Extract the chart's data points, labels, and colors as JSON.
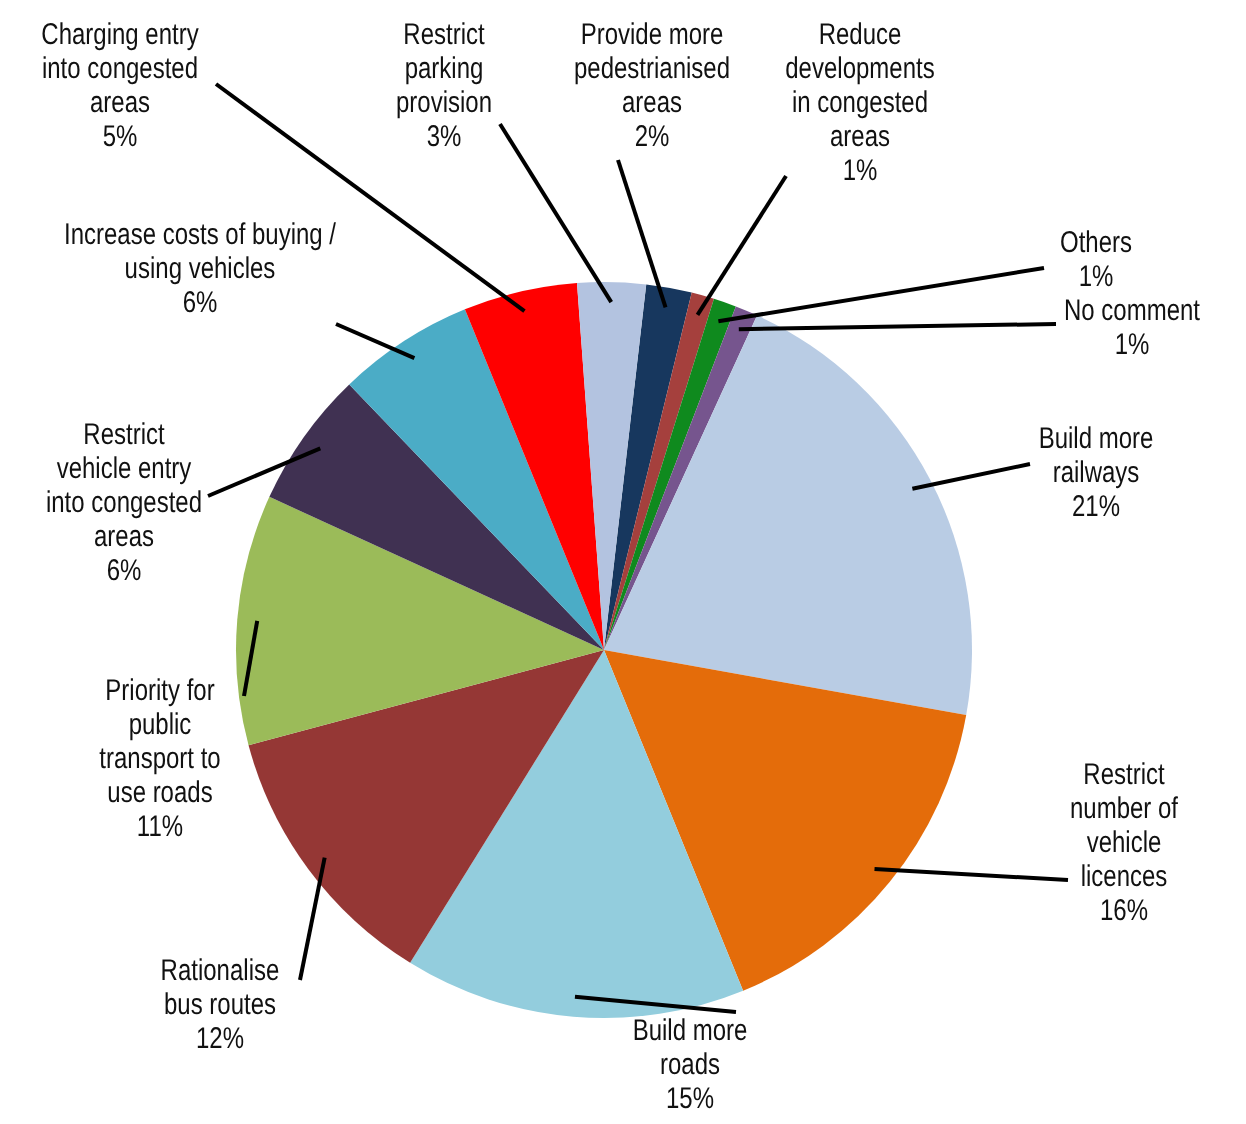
{
  "chart_data": {
    "type": "pie",
    "categories": [
      "Provide more pedestrianised areas",
      "Reduce developments in congested areas",
      "Others",
      "No comment",
      "Build more railways",
      "Restrict number of vehicle licences",
      "Build more roads",
      "Rationalise bus routes",
      "Priority for public transport to use roads",
      "Restrict vehicle entry into congested areas",
      "Increase costs of buying / using vehicles",
      "Charging entry into congested areas",
      "Restrict parking provision"
    ],
    "values": [
      2,
      1,
      1,
      1,
      21,
      16,
      15,
      12,
      11,
      6,
      6,
      5,
      3
    ],
    "colors": [
      "#17375e",
      "#a5403d",
      "#0f8a1e",
      "#76558e",
      "#b9cce4",
      "#e46c0a",
      "#93cddd",
      "#953735",
      "#9bbb59",
      "#403152",
      "#4bacc6",
      "#ff0000",
      "#b3c3e0"
    ],
    "value_labels": [
      "2%",
      "1%",
      "1%",
      "1%",
      "21%",
      "16%",
      "15%",
      "12%",
      "11%",
      "6%",
      "6%",
      "5%",
      "3%"
    ]
  }
}
